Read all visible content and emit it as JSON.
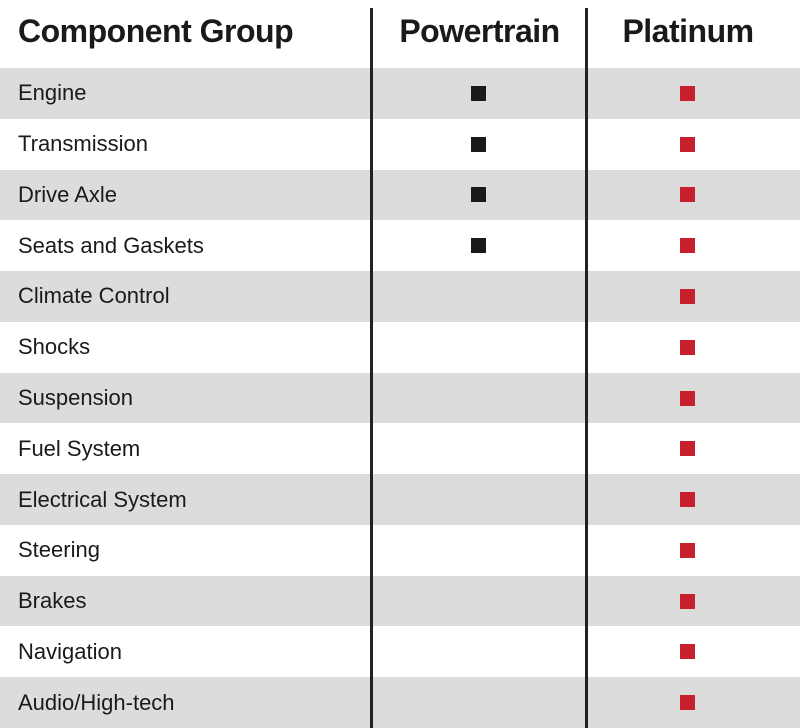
{
  "table": {
    "header": [
      "Component Group",
      "Powertrain",
      "Platinum"
    ],
    "rows": [
      {
        "component": "Engine",
        "powertrain": true,
        "platinum": true
      },
      {
        "component": "Transmission",
        "powertrain": true,
        "platinum": true
      },
      {
        "component": "Drive Axle",
        "powertrain": true,
        "platinum": true
      },
      {
        "component": "Seats and Gaskets",
        "powertrain": true,
        "platinum": true
      },
      {
        "component": "Climate Control",
        "powertrain": false,
        "platinum": true
      },
      {
        "component": "Shocks",
        "powertrain": false,
        "platinum": true
      },
      {
        "component": "Suspension",
        "powertrain": false,
        "platinum": true
      },
      {
        "component": "Fuel System",
        "powertrain": false,
        "platinum": true
      },
      {
        "component": "Electrical System",
        "powertrain": false,
        "platinum": true
      },
      {
        "component": "Steering",
        "powertrain": false,
        "platinum": true
      },
      {
        "component": "Brakes",
        "powertrain": false,
        "platinum": true
      },
      {
        "component": "Navigation",
        "powertrain": false,
        "platinum": true
      },
      {
        "component": "Audio/High-tech",
        "powertrain": false,
        "platinum": true
      }
    ]
  }
}
